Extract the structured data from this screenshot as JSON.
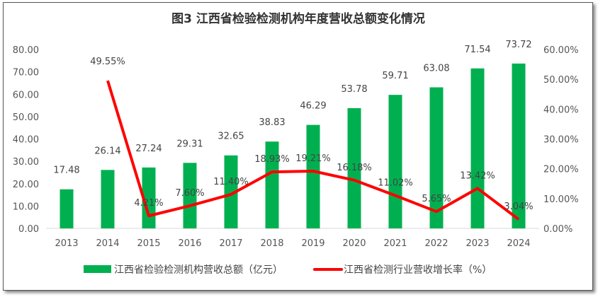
{
  "chart_data": {
    "type": "bar+line",
    "title": "图3  江西省检验检测机构年度营收总额变化情况",
    "categories": [
      "2013",
      "2014",
      "2015",
      "2016",
      "2017",
      "2018",
      "2019",
      "2020",
      "2021",
      "2022",
      "2023",
      "2024"
    ],
    "series": [
      {
        "name": "江西省检验检测机构营收总额（亿元）",
        "type": "bar",
        "axis": "left",
        "color": "#00b050",
        "values": [
          17.48,
          26.14,
          27.24,
          29.31,
          32.65,
          38.83,
          46.29,
          53.78,
          59.71,
          63.08,
          71.54,
          73.72
        ],
        "labels": [
          "17.48",
          "26.14",
          "27.24",
          "29.31",
          "32.65",
          "38.83",
          "46.29",
          "53.78",
          "59.71",
          "63.08",
          "71.54",
          "73.72"
        ]
      },
      {
        "name": "江西省检测行业营收增长率（%）",
        "type": "line",
        "axis": "right",
        "color": "#ff0000",
        "values": [
          null,
          49.55,
          4.21,
          7.6,
          11.4,
          18.93,
          19.21,
          16.18,
          11.02,
          5.65,
          13.42,
          3.04
        ],
        "labels": [
          null,
          "49.55%",
          "4.21%",
          "7.60%",
          "11.40%",
          "18.93%",
          "19.21%",
          "16.18%",
          "11.02%",
          "5.65%",
          "13.42%",
          "3.04%"
        ]
      }
    ],
    "y_left": {
      "range": [
        0,
        80
      ],
      "ticks": [
        "0.00",
        "10.00",
        "20.00",
        "30.00",
        "40.00",
        "50.00",
        "60.00",
        "70.00",
        "80.00"
      ]
    },
    "y_right": {
      "range": [
        0,
        60
      ],
      "ticks": [
        "0.00%",
        "10.00%",
        "20.00%",
        "30.00%",
        "40.00%",
        "50.00%",
        "60.00%"
      ]
    },
    "grid": false,
    "legend_position": "bottom"
  }
}
